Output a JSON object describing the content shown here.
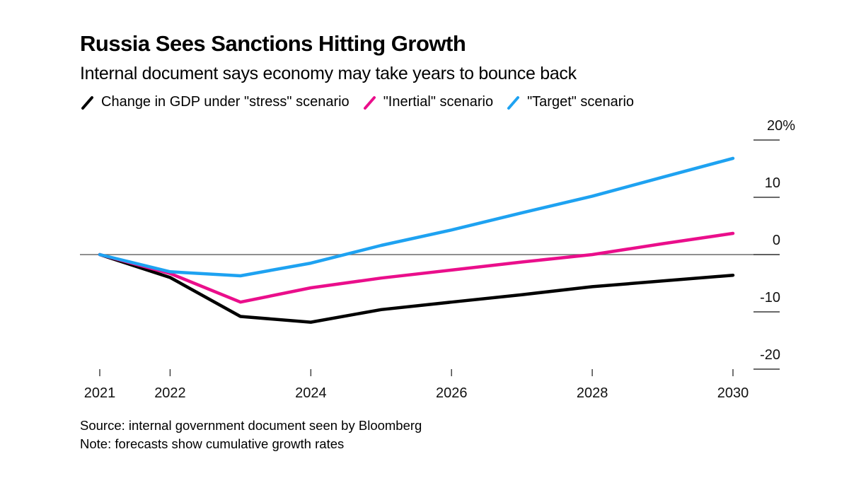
{
  "chart_data": {
    "type": "line",
    "title": "Russia Sees Sanctions Hitting Growth",
    "subtitle": "Internal document says economy may take years to bounce back",
    "xlabel": "",
    "ylabel": "",
    "x": [
      2021,
      2022,
      2023,
      2024,
      2025,
      2026,
      2027,
      2028,
      2029,
      2030
    ],
    "xticks": [
      2021,
      2022,
      2024,
      2026,
      2028,
      2030
    ],
    "xtick_labels": [
      "2021",
      "2022",
      "2024",
      "2026",
      "2028",
      "2030"
    ],
    "ylim": [
      -20,
      20
    ],
    "yticks": [
      20,
      10,
      0,
      -10,
      -20
    ],
    "ytick_labels": [
      "20%",
      "10",
      "0",
      "-10",
      "-20"
    ],
    "yaxis_position": "right",
    "zero_line": true,
    "grid": false,
    "legend_position": "top-left",
    "series": [
      {
        "name": "Change in GDP under \"stress\" scenario",
        "color": "#000000",
        "values": [
          0,
          -4.0,
          -10.8,
          -11.8,
          -9.6,
          -8.3,
          -7.0,
          -5.6,
          -4.6,
          -3.6
        ]
      },
      {
        "name": "\"Inertial\" scenario",
        "color": "#ea0e8b",
        "values": [
          0,
          -3.3,
          -8.3,
          -5.8,
          -4.1,
          -2.7,
          -1.3,
          0.0,
          1.9,
          3.7
        ]
      },
      {
        "name": "\"Target\" scenario",
        "color": "#1ea2f1",
        "values": [
          0,
          -3.0,
          -3.7,
          -1.5,
          1.6,
          4.3,
          7.3,
          10.2,
          13.5,
          16.8
        ]
      }
    ]
  },
  "footer": {
    "source": "Source: internal government document seen by Bloomberg",
    "note": "Note: forecasts show cumulative growth rates"
  }
}
